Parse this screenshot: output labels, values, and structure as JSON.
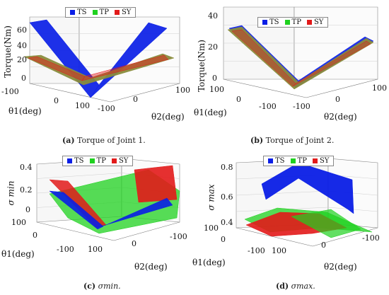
{
  "captions": {
    "a": {
      "label": "(a)",
      "text": "Torque of Joint 1."
    },
    "b": {
      "label": "(b)",
      "text": "Torque of Joint 2."
    },
    "c": {
      "label": "(c)",
      "text": "σmin."
    },
    "d": {
      "label": "(d)",
      "text": "σmax."
    }
  },
  "legend": [
    "TS",
    "TP",
    "SY"
  ],
  "colors": {
    "TS": "#0a1ee6",
    "TP": "#1fd11f",
    "SY": "#e21a1a",
    "TP_b": "#8a8c3c"
  },
  "chart_data": [
    {
      "type": "surface3d",
      "panel": "a",
      "zlabel": "Torque(Nm)",
      "xlabel": "θ1(deg)",
      "ylabel": "θ2(deg)",
      "zticks": [
        "0",
        "20",
        "40",
        "60"
      ],
      "xticks": [
        "-100",
        "0",
        "100"
      ],
      "yticks": [
        "100",
        "0",
        "-100"
      ],
      "zlim": [
        0,
        70
      ],
      "series": [
        {
          "name": "TS",
          "shape": "V-fold",
          "min": 0,
          "max": 70
        },
        {
          "name": "TP",
          "shape": "V-fold",
          "min": 0,
          "max": 35
        },
        {
          "name": "SY",
          "shape": "V-fold",
          "min": 0,
          "max": 35
        }
      ]
    },
    {
      "type": "surface3d",
      "panel": "b",
      "zlabel": "Torque(Nm)",
      "xlabel": "θ1(deg)",
      "ylabel": "θ2(deg)",
      "zticks": [
        "0",
        "20",
        "40"
      ],
      "xticks": [
        "100",
        "0",
        "-100"
      ],
      "yticks": [
        "-100",
        "0",
        "100"
      ],
      "zlim": [
        0,
        40
      ],
      "series": [
        {
          "name": "TS",
          "shape": "V-fold",
          "min": 0,
          "max": 33
        },
        {
          "name": "TP",
          "shape": "V-fold",
          "min": 0,
          "max": 33
        },
        {
          "name": "SY",
          "shape": "V-fold",
          "min": 0,
          "max": 33
        }
      ]
    },
    {
      "type": "surface3d",
      "panel": "c",
      "zlabel": "σ min",
      "xlabel": "θ1(deg)",
      "ylabel": "θ2(deg)",
      "zticks": [
        "0",
        "0.2",
        "0.4"
      ],
      "xticks": [
        "100",
        "0",
        "-100"
      ],
      "yticks": [
        "100",
        "0",
        "-100"
      ],
      "zlim": [
        0,
        0.4
      ],
      "series": [
        {
          "name": "TS",
          "min": 0,
          "max": 0.3
        },
        {
          "name": "TP",
          "min": 0,
          "max": 0.4
        },
        {
          "name": "SY",
          "min": 0,
          "max": 0.4
        }
      ]
    },
    {
      "type": "surface3d",
      "panel": "d",
      "zlabel": "σ max",
      "xlabel": "θ1(deg)",
      "ylabel": "θ2(deg)",
      "zticks": [
        "0.4",
        "0.6",
        "0.8"
      ],
      "xticks": [
        "100",
        "0",
        "-100"
      ],
      "yticks": [
        "100",
        "0",
        "-100"
      ],
      "zlim": [
        0.35,
        0.85
      ],
      "series": [
        {
          "name": "TS",
          "min": 0.65,
          "max": 0.8
        },
        {
          "name": "TP",
          "min": 0.4,
          "max": 0.55
        },
        {
          "name": "SY",
          "min": 0.4,
          "max": 0.55
        }
      ]
    }
  ]
}
